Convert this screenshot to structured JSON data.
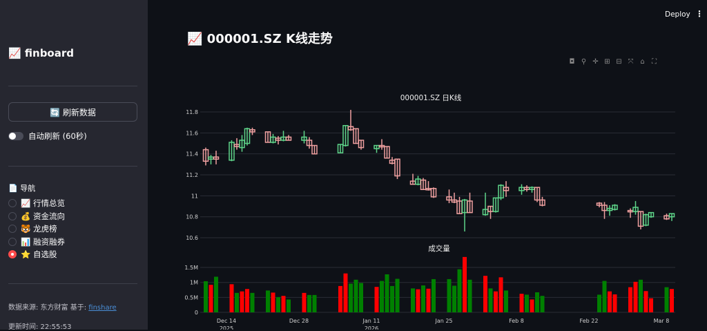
{
  "sidebar": {
    "brand": "📈 finboard",
    "refresh_button": "🔄 刷新数据",
    "auto_refresh": "自动刷新 (60秒)",
    "nav_title": "📄 导航",
    "nav_items": [
      {
        "label": "📈 行情总览",
        "selected": false
      },
      {
        "label": "💰 资金流向",
        "selected": false
      },
      {
        "label": "🐯 龙虎榜",
        "selected": false
      },
      {
        "label": "📊 融资融券",
        "selected": false
      },
      {
        "label": "⭐ 自选股",
        "selected": true
      }
    ],
    "source_prefix": "数据来源: 东方财富 基于: ",
    "source_link": "finshare",
    "updated": "更新时间: 22:55:53"
  },
  "header": {
    "deploy": "Deploy",
    "menu": "⋮"
  },
  "main": {
    "title": "📈 000001.SZ K线走势"
  },
  "toolbar": [
    "camera-icon",
    "zoom-icon",
    "pan-icon",
    "zoom-in-icon",
    "zoom-out-icon",
    "autoscale-icon",
    "home-icon",
    "fullscreen-icon"
  ],
  "colors": {
    "up_candle": "#5fd68a",
    "down_candle": "#f0a0a0",
    "vol_up": "#008000",
    "vol_down": "#ff0000"
  },
  "chart_data": [
    {
      "type": "candlestick",
      "title": "000001.SZ 日K线",
      "yticks": [
        "11.8",
        "11.6",
        "11.4",
        "11.2",
        "11",
        "10.8",
        "10.6"
      ],
      "ylim": [
        10.58,
        11.85
      ],
      "grid": true,
      "columns": [
        "date",
        "open",
        "high",
        "low",
        "close"
      ],
      "candles": [
        [
          "2025-12-10",
          11.44,
          11.46,
          11.29,
          11.33
        ],
        [
          "2025-12-11",
          11.35,
          11.39,
          11.3,
          11.37
        ],
        [
          "2025-12-12",
          11.37,
          11.43,
          11.3,
          11.35
        ],
        [
          "2025-12-15",
          11.34,
          11.53,
          11.33,
          11.51
        ],
        [
          "2025-12-16",
          11.49,
          11.55,
          11.44,
          11.47
        ],
        [
          "2025-12-17",
          11.46,
          11.58,
          11.42,
          11.53
        ],
        [
          "2025-12-18",
          11.5,
          11.65,
          11.48,
          11.64
        ],
        [
          "2025-12-19",
          11.63,
          11.65,
          11.58,
          11.61
        ],
        [
          "2025-12-22",
          11.61,
          11.61,
          11.51,
          11.51
        ],
        [
          "2025-12-23",
          11.51,
          11.59,
          11.5,
          11.56
        ],
        [
          "2025-12-24",
          11.55,
          11.57,
          11.49,
          11.53
        ],
        [
          "2025-12-25",
          11.53,
          11.62,
          11.52,
          11.56
        ],
        [
          "2025-12-26",
          11.56,
          11.58,
          11.53,
          11.53
        ],
        [
          "2025-12-29",
          11.53,
          11.62,
          11.5,
          11.56
        ],
        [
          "2025-12-30",
          11.53,
          11.56,
          11.45,
          11.48
        ],
        [
          "2025-12-31",
          11.48,
          11.48,
          11.4,
          11.4
        ],
        [
          "2026-01-05",
          11.41,
          11.49,
          11.41,
          11.49
        ],
        [
          "2026-01-06",
          11.48,
          11.67,
          11.47,
          11.67
        ],
        [
          "2026-01-07",
          11.66,
          11.82,
          11.62,
          11.63
        ],
        [
          "2026-01-08",
          11.64,
          11.64,
          11.5,
          11.5
        ],
        [
          "2026-01-09",
          11.53,
          11.53,
          11.44,
          11.46
        ],
        [
          "2026-01-12",
          11.45,
          11.48,
          11.41,
          11.48
        ],
        [
          "2026-01-13",
          11.48,
          11.54,
          11.44,
          11.47
        ],
        [
          "2026-01-14",
          11.47,
          11.47,
          11.36,
          11.36
        ],
        [
          "2026-01-15",
          11.34,
          11.37,
          11.3,
          11.31
        ],
        [
          "2026-01-16",
          11.35,
          11.35,
          11.16,
          11.19
        ],
        [
          "2026-01-19",
          11.14,
          11.21,
          11.11,
          11.11
        ],
        [
          "2026-01-20",
          11.11,
          11.19,
          11.1,
          11.16
        ],
        [
          "2026-01-21",
          11.15,
          11.17,
          11.06,
          11.06
        ],
        [
          "2026-01-22",
          11.07,
          11.14,
          11.05,
          11.06
        ],
        [
          "2026-01-23",
          11.07,
          11.08,
          10.98,
          10.99
        ],
        [
          "2026-01-26",
          10.99,
          11.06,
          10.93,
          10.96
        ],
        [
          "2026-01-27",
          10.96,
          11.03,
          10.93,
          10.94
        ],
        [
          "2026-01-28",
          10.95,
          10.99,
          10.83,
          10.83
        ],
        [
          "2026-01-29",
          10.84,
          10.97,
          10.66,
          10.96
        ],
        [
          "2026-01-30",
          10.95,
          11.03,
          10.84,
          10.84
        ],
        [
          "2026-02-02",
          10.82,
          11.03,
          10.81,
          10.87
        ],
        [
          "2026-02-03",
          10.9,
          10.9,
          10.78,
          10.85
        ],
        [
          "2026-02-04",
          10.85,
          10.98,
          10.84,
          10.98
        ],
        [
          "2026-02-05",
          10.98,
          11.11,
          10.96,
          11.1
        ],
        [
          "2026-02-06",
          11.08,
          11.14,
          10.99,
          11.05
        ],
        [
          "2026-02-09",
          11.05,
          11.11,
          11.01,
          11.08
        ],
        [
          "2026-02-10",
          11.08,
          11.1,
          11.04,
          11.06
        ],
        [
          "2026-02-11",
          11.06,
          11.09,
          11.03,
          11.08
        ],
        [
          "2026-02-12",
          11.08,
          11.08,
          10.94,
          10.96
        ],
        [
          "2026-02-13",
          10.96,
          10.99,
          10.9,
          10.91
        ],
        [
          "2026-02-24",
          10.93,
          10.94,
          10.89,
          10.91
        ],
        [
          "2026-02-25",
          10.91,
          10.94,
          10.78,
          10.86
        ],
        [
          "2026-02-26",
          10.86,
          10.91,
          10.81,
          10.88
        ],
        [
          "2026-02-27",
          10.87,
          10.92,
          10.86,
          10.91
        ],
        [
          "2026-03-02",
          10.86,
          10.88,
          10.79,
          10.85
        ],
        [
          "2026-03-03",
          10.85,
          10.95,
          10.82,
          10.89
        ],
        [
          "2026-03-04",
          10.85,
          10.85,
          10.68,
          10.71
        ],
        [
          "2026-03-05",
          10.72,
          10.83,
          10.71,
          10.82
        ],
        [
          "2026-03-06",
          10.8,
          10.84,
          10.79,
          10.84
        ],
        [
          "2026-03-09",
          10.81,
          10.83,
          10.77,
          10.78
        ],
        [
          "2026-03-10",
          10.8,
          10.83,
          10.76,
          10.83
        ]
      ]
    },
    {
      "type": "bar",
      "title": "成交量",
      "yticks": [
        "1.5M",
        "1M",
        "0.5M",
        "0"
      ],
      "ylim": [
        0,
        1.9
      ],
      "unit": "M",
      "grid": true,
      "xticks": [
        [
          "2025-12-14",
          "Dec 14",
          "2025"
        ],
        [
          "2025-12-28",
          "Dec 28",
          ""
        ],
        [
          "2026-01-11",
          "Jan 11",
          "2026"
        ],
        [
          "2026-01-25",
          "Jan 25",
          ""
        ],
        [
          "2026-02-08",
          "Feb 8",
          ""
        ],
        [
          "2026-02-22",
          "Feb 22",
          ""
        ],
        [
          "2026-03-08",
          "Mar 8",
          ""
        ]
      ],
      "volumes": [
        [
          1.04,
          "up"
        ],
        [
          0.92,
          "down"
        ],
        [
          1.19,
          "up"
        ],
        [
          0.94,
          "down"
        ],
        [
          0.65,
          "up"
        ],
        [
          0.7,
          "down"
        ],
        [
          0.78,
          "down"
        ],
        [
          0.65,
          "up"
        ],
        [
          0.73,
          "up"
        ],
        [
          0.66,
          "down"
        ],
        [
          0.51,
          "up"
        ],
        [
          0.55,
          "down"
        ],
        [
          0.43,
          "up"
        ],
        [
          0.65,
          "down"
        ],
        [
          0.58,
          "up"
        ],
        [
          0.58,
          "up"
        ],
        [
          0.88,
          "down"
        ],
        [
          1.3,
          "down"
        ],
        [
          0.96,
          "up"
        ],
        [
          1.09,
          "up"
        ],
        [
          0.98,
          "up"
        ],
        [
          0.85,
          "down"
        ],
        [
          1.05,
          "up"
        ],
        [
          1.27,
          "up"
        ],
        [
          0.88,
          "up"
        ],
        [
          1.12,
          "up"
        ],
        [
          0.8,
          "up"
        ],
        [
          0.77,
          "down"
        ],
        [
          0.9,
          "up"
        ],
        [
          0.79,
          "down"
        ],
        [
          1.11,
          "up"
        ],
        [
          1.11,
          "up"
        ],
        [
          0.89,
          "up"
        ],
        [
          1.44,
          "up"
        ],
        [
          1.85,
          "down"
        ],
        [
          1.09,
          "up"
        ],
        [
          1.22,
          "down"
        ],
        [
          0.8,
          "up"
        ],
        [
          0.7,
          "down"
        ],
        [
          1.17,
          "down"
        ],
        [
          0.73,
          "up"
        ],
        [
          0.62,
          "down"
        ],
        [
          0.59,
          "up"
        ],
        [
          0.43,
          "down"
        ],
        [
          0.67,
          "up"
        ],
        [
          0.55,
          "up"
        ],
        [
          0.59,
          "up"
        ],
        [
          1.05,
          "up"
        ],
        [
          0.7,
          "down"
        ],
        [
          0.6,
          "down"
        ],
        [
          0.84,
          "down"
        ],
        [
          1.02,
          "down"
        ],
        [
          1.09,
          "up"
        ],
        [
          0.71,
          "down"
        ],
        [
          0.47,
          "down"
        ],
        [
          0.84,
          "up"
        ],
        [
          0.78,
          "down"
        ]
      ]
    }
  ]
}
